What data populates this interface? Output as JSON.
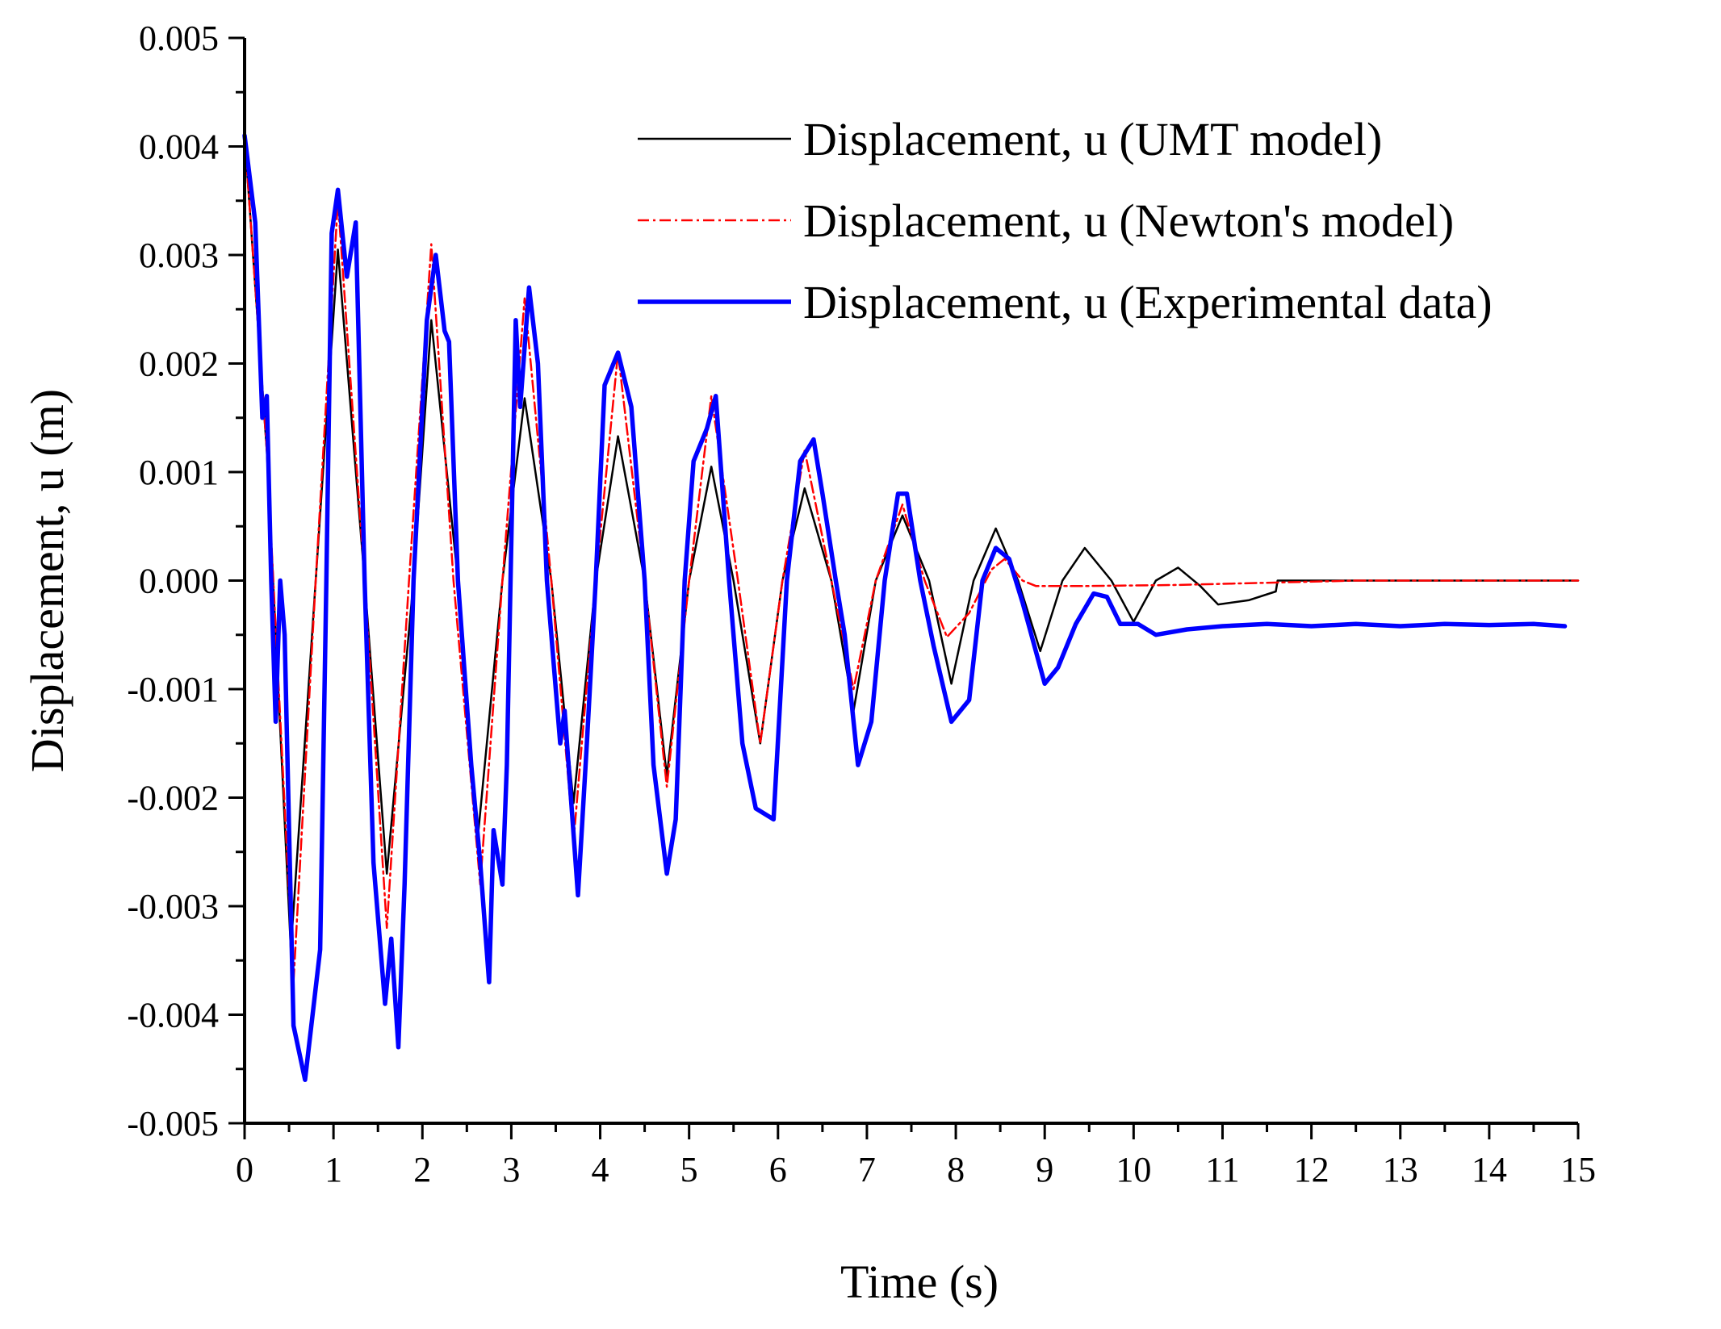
{
  "chart_data": {
    "type": "line",
    "title": "",
    "xlabel": "Time (s)",
    "ylabel": "Displacement, u (m)",
    "xlim": [
      0,
      15
    ],
    "ylim": [
      -0.005,
      0.005
    ],
    "x_ticks": [
      "0",
      "1",
      "2",
      "3",
      "4",
      "5",
      "6",
      "7",
      "8",
      "9",
      "10",
      "11",
      "12",
      "13",
      "14",
      "15"
    ],
    "y_ticks": [
      "-0.005",
      "-0.004",
      "-0.003",
      "-0.002",
      "-0.001",
      "0.000",
      "0.001",
      "0.002",
      "0.003",
      "0.004",
      "0.005"
    ],
    "grid": false,
    "legend_position": "top-right",
    "series": [
      {
        "name": "Displacement, u (UMT model)",
        "color": "#000000",
        "style": "solid",
        "points": [
          [
            0,
            0.0041
          ],
          [
            0.25,
            0.0012
          ],
          [
            0.52,
            -0.0034
          ],
          [
            0.8,
            0.0
          ],
          [
            1.05,
            0.00305
          ],
          [
            1.35,
            0.0
          ],
          [
            1.6,
            -0.0027
          ],
          [
            1.9,
            0.0
          ],
          [
            2.1,
            0.0024
          ],
          [
            2.4,
            0.0
          ],
          [
            2.62,
            -0.0024
          ],
          [
            2.9,
            0.0
          ],
          [
            3.15,
            0.00168
          ],
          [
            3.45,
            0.0
          ],
          [
            3.7,
            -0.00205
          ],
          [
            3.95,
            0.0
          ],
          [
            4.2,
            0.00133
          ],
          [
            4.5,
            0.0
          ],
          [
            4.75,
            -0.0018
          ],
          [
            5.0,
            0.0
          ],
          [
            5.25,
            0.00105
          ],
          [
            5.5,
            0.0
          ],
          [
            5.8,
            -0.0015
          ],
          [
            6.05,
            0.0
          ],
          [
            6.3,
            0.00085
          ],
          [
            6.6,
            0.0
          ],
          [
            6.85,
            -0.0012
          ],
          [
            7.1,
            0.0
          ],
          [
            7.4,
            0.0006
          ],
          [
            7.7,
            0.0
          ],
          [
            7.95,
            -0.00095
          ],
          [
            8.2,
            0.0
          ],
          [
            8.45,
            0.00048
          ],
          [
            8.7,
            0.0
          ],
          [
            8.95,
            -0.00065
          ],
          [
            9.2,
            0.0
          ],
          [
            9.45,
            0.0003
          ],
          [
            9.75,
            0.0
          ],
          [
            10.0,
            -0.00038
          ],
          [
            10.25,
            0.0
          ],
          [
            10.5,
            0.00012
          ],
          [
            10.75,
            -5e-05
          ],
          [
            10.95,
            -0.00022
          ],
          [
            11.3,
            -0.00018
          ],
          [
            11.6,
            -0.0001
          ],
          [
            11.62,
            0.0
          ],
          [
            12.5,
            0.0
          ],
          [
            13.5,
            0.0
          ],
          [
            15,
            0.0
          ]
        ]
      },
      {
        "name": "Displacement, u (Newton's model)",
        "color": "#ff0000",
        "style": "dash-dot",
        "points": [
          [
            0,
            0.0041
          ],
          [
            0.25,
            0.0012
          ],
          [
            0.55,
            -0.0037
          ],
          [
            0.8,
            0.0
          ],
          [
            1.05,
            0.0035
          ],
          [
            1.35,
            0.0
          ],
          [
            1.6,
            -0.0032
          ],
          [
            1.85,
            0.0
          ],
          [
            2.1,
            0.0031
          ],
          [
            2.35,
            0.0
          ],
          [
            2.65,
            -0.0028
          ],
          [
            2.9,
            0.0
          ],
          [
            3.15,
            0.0026
          ],
          [
            3.45,
            0.0
          ],
          [
            3.7,
            -0.0024
          ],
          [
            3.95,
            0.0
          ],
          [
            4.2,
            0.0021
          ],
          [
            4.5,
            0.0
          ],
          [
            4.75,
            -0.0019
          ],
          [
            5.0,
            0.0
          ],
          [
            5.25,
            0.0017
          ],
          [
            5.55,
            0.0
          ],
          [
            5.8,
            -0.0015
          ],
          [
            6.05,
            0.0
          ],
          [
            6.3,
            0.0012
          ],
          [
            6.6,
            0.0
          ],
          [
            6.85,
            -0.001
          ],
          [
            7.1,
            0.0
          ],
          [
            7.4,
            0.0007
          ],
          [
            7.65,
            0.0
          ],
          [
            7.9,
            -0.00052
          ],
          [
            8.15,
            -0.0003
          ],
          [
            8.4,
            0.0001
          ],
          [
            8.55,
            0.0002
          ],
          [
            8.75,
            0.0
          ],
          [
            8.9,
            -5e-05
          ],
          [
            9.5,
            -5e-05
          ],
          [
            10.5,
            -4e-05
          ],
          [
            11.5,
            -2e-05
          ],
          [
            12.5,
            0.0
          ],
          [
            15,
            0.0
          ]
        ]
      },
      {
        "name": "Displacement, u (Experimental data)",
        "color": "#0000ff",
        "style": "solid-thick",
        "points": [
          [
            0,
            0.0041
          ],
          [
            0.12,
            0.0033
          ],
          [
            0.2,
            0.0015
          ],
          [
            0.25,
            0.0017
          ],
          [
            0.3,
            0.0
          ],
          [
            0.35,
            -0.0013
          ],
          [
            0.4,
            0.0
          ],
          [
            0.45,
            -0.0005
          ],
          [
            0.55,
            -0.0041
          ],
          [
            0.68,
            -0.0046
          ],
          [
            0.85,
            -0.0034
          ],
          [
            0.92,
            0.0
          ],
          [
            0.98,
            0.0032
          ],
          [
            1.05,
            0.0036
          ],
          [
            1.15,
            0.0028
          ],
          [
            1.25,
            0.0033
          ],
          [
            1.35,
            0.0
          ],
          [
            1.45,
            -0.0026
          ],
          [
            1.58,
            -0.0039
          ],
          [
            1.65,
            -0.0033
          ],
          [
            1.73,
            -0.0043
          ],
          [
            1.8,
            -0.0028
          ],
          [
            1.9,
            0.0
          ],
          [
            2.05,
            0.0024
          ],
          [
            2.15,
            0.003
          ],
          [
            2.25,
            0.0023
          ],
          [
            2.3,
            0.0022
          ],
          [
            2.4,
            0.0
          ],
          [
            2.55,
            -0.0017
          ],
          [
            2.65,
            -0.0026
          ],
          [
            2.75,
            -0.0037
          ],
          [
            2.8,
            -0.0023
          ],
          [
            2.9,
            -0.0028
          ],
          [
            2.95,
            -0.0017
          ],
          [
            3.05,
            0.0024
          ],
          [
            3.1,
            0.0016
          ],
          [
            3.2,
            0.0027
          ],
          [
            3.3,
            0.002
          ],
          [
            3.4,
            0.0
          ],
          [
            3.55,
            -0.0015
          ],
          [
            3.6,
            -0.0012
          ],
          [
            3.75,
            -0.0029
          ],
          [
            3.85,
            -0.0015
          ],
          [
            3.95,
            0.0
          ],
          [
            4.05,
            0.0018
          ],
          [
            4.2,
            0.0021
          ],
          [
            4.35,
            0.0016
          ],
          [
            4.5,
            0.0
          ],
          [
            4.6,
            -0.0017
          ],
          [
            4.75,
            -0.0027
          ],
          [
            4.85,
            -0.0022
          ],
          [
            4.95,
            0.0
          ],
          [
            5.05,
            0.0011
          ],
          [
            5.2,
            0.0014
          ],
          [
            5.3,
            0.0017
          ],
          [
            5.45,
            0.0
          ],
          [
            5.6,
            -0.0015
          ],
          [
            5.75,
            -0.0021
          ],
          [
            5.95,
            -0.0022
          ],
          [
            6.1,
            0.0
          ],
          [
            6.25,
            0.0011
          ],
          [
            6.4,
            0.0013
          ],
          [
            6.5,
            0.0008
          ],
          [
            6.65,
            0.0
          ],
          [
            6.75,
            -0.0005
          ],
          [
            6.9,
            -0.0017
          ],
          [
            7.05,
            -0.0013
          ],
          [
            7.2,
            0.0
          ],
          [
            7.35,
            0.0008
          ],
          [
            7.45,
            0.0008
          ],
          [
            7.6,
            0.0
          ],
          [
            7.75,
            -0.0006
          ],
          [
            7.95,
            -0.0013
          ],
          [
            8.15,
            -0.0011
          ],
          [
            8.3,
            0.0
          ],
          [
            8.45,
            0.0003
          ],
          [
            8.6,
            0.0002
          ],
          [
            8.75,
            -0.0002
          ],
          [
            8.85,
            -0.0005
          ],
          [
            9.0,
            -0.00095
          ],
          [
            9.15,
            -0.0008
          ],
          [
            9.35,
            -0.0004
          ],
          [
            9.55,
            -0.00012
          ],
          [
            9.7,
            -0.00015
          ],
          [
            9.85,
            -0.0004
          ],
          [
            10.05,
            -0.0004
          ],
          [
            10.25,
            -0.0005
          ],
          [
            10.6,
            -0.00045
          ],
          [
            11.0,
            -0.00042
          ],
          [
            11.5,
            -0.0004
          ],
          [
            12.0,
            -0.00042
          ],
          [
            12.5,
            -0.0004
          ],
          [
            13.0,
            -0.00042
          ],
          [
            13.5,
            -0.0004
          ],
          [
            14.0,
            -0.00041
          ],
          [
            14.5,
            -0.0004
          ],
          [
            14.85,
            -0.00042
          ]
        ]
      }
    ]
  }
}
